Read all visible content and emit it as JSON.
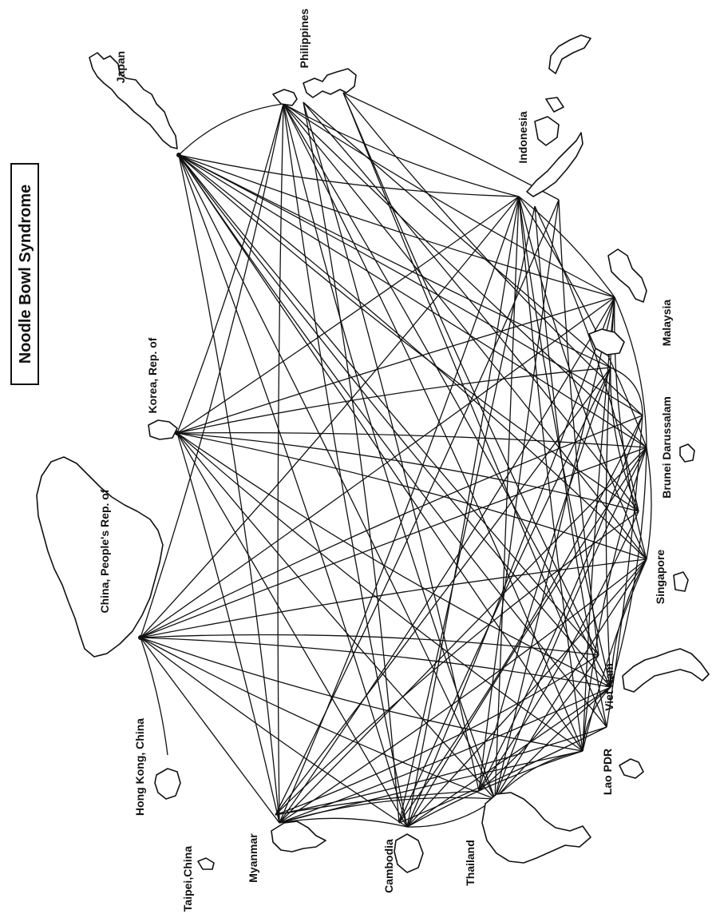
{
  "title": "Noodle Bowl Syndrome",
  "countries": [
    {
      "id": "japan",
      "label": "Japan"
    },
    {
      "id": "philippines",
      "label": "Philippines"
    },
    {
      "id": "indonesia",
      "label": "Indonesia"
    },
    {
      "id": "malaysia",
      "label": "Malaysia"
    },
    {
      "id": "brunei",
      "label": "Brunei Darussalam"
    },
    {
      "id": "singapore",
      "label": "Singapore"
    },
    {
      "id": "vietnam",
      "label": "Viet Nam"
    },
    {
      "id": "laos",
      "label": "Lao PDR"
    },
    {
      "id": "thailand",
      "label": "Thailand"
    },
    {
      "id": "cambodia",
      "label": "Cambodia"
    },
    {
      "id": "myanmar",
      "label": "Myanmar"
    },
    {
      "id": "taipei",
      "label": "Taipei,China"
    },
    {
      "id": "hongkong",
      "label": "Hong Kong, China"
    },
    {
      "id": "china",
      "label": "China, People's Rep. of"
    },
    {
      "id": "korea",
      "label": "Korea, Rep. of"
    }
  ]
}
